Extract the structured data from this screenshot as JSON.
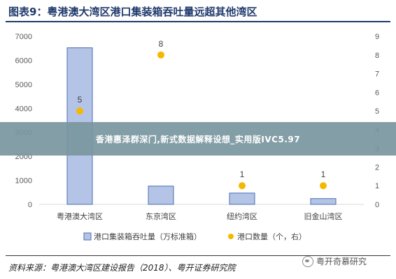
{
  "figure": {
    "title": "图表9：粤港澳大湾区港口集装箱吞吐量远超其他湾区",
    "source": "资料来源：粤港澳大湾区建设报告（2018）、粤开证券研究院",
    "watermark": "粤开奇慕研究"
  },
  "overlay": {
    "banner_text": "香港惠泽群深门,新式数据解释设想_实用版IVC5.97"
  },
  "colors": {
    "bar_fill": "#b4c4e6",
    "bar_stroke": "#4a6db3",
    "dot": "#f5b800",
    "title": "#1f3a6b",
    "axis_text": "#595959",
    "banner": "#7a96a0"
  },
  "chart_data": {
    "type": "bar",
    "categories": [
      "粤港澳大湾区",
      "东京湾区",
      "纽约湾区",
      "旧金山湾区"
    ],
    "series": [
      {
        "name": "港口集装箱吞吐量（万标准箱）",
        "kind": "bar",
        "axis": "left",
        "values": [
          6520,
          760,
          470,
          240
        ]
      },
      {
        "name": "港口数量（个，右）",
        "kind": "scatter",
        "axis": "right",
        "values": [
          5,
          8,
          1,
          1
        ],
        "data_labels": [
          "5",
          "8",
          "1",
          "1"
        ]
      }
    ],
    "y_left": {
      "min": 0,
      "max": 7000,
      "ticks": [
        "0",
        "1000",
        "2000",
        "3000",
        "4000",
        "5000",
        "6000",
        "7000"
      ]
    },
    "y_right": {
      "min": 0,
      "max": 9,
      "ticks": [
        "0",
        "1",
        "2",
        "3",
        "4",
        "5",
        "6",
        "7",
        "8",
        "9"
      ]
    },
    "grid": false,
    "legend_position": "bottom"
  }
}
